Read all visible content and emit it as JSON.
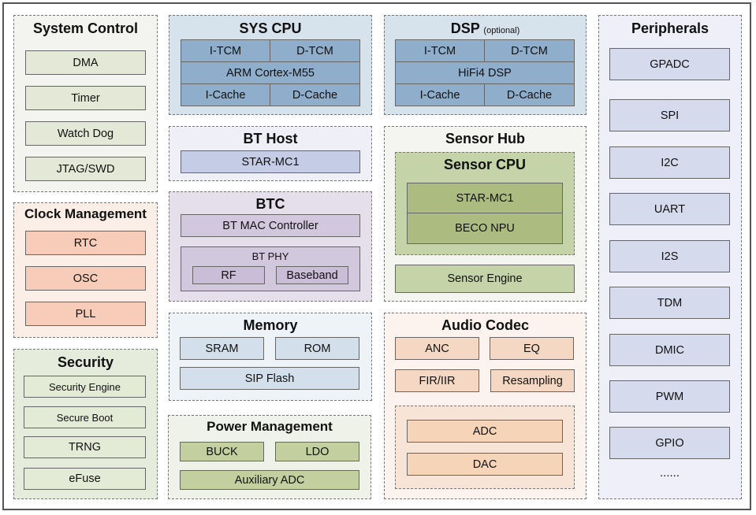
{
  "system_control": {
    "title": "System Control",
    "items": [
      "DMA",
      "Timer",
      "Watch Dog",
      "JTAG/SWD"
    ],
    "colors": {
      "bg": "#f3f4f0",
      "box": "#e3e9d6"
    }
  },
  "clock_management": {
    "title": "Clock Management",
    "items": [
      "RTC",
      "OSC",
      "PLL"
    ],
    "colors": {
      "bg": "#fbeee6",
      "box": "#f7cdb9"
    }
  },
  "security": {
    "title": "Security",
    "items": [
      "Security Engine",
      "Secure Boot",
      "TRNG",
      "eFuse"
    ],
    "colors": {
      "bg": "#e6ecdc",
      "box": "#e3ead6"
    }
  },
  "sys_cpu": {
    "title": "SYS CPU",
    "cells": {
      "itcm": "I-TCM",
      "dtcm": "D-TCM",
      "core": "ARM Cortex-M55",
      "icache": "I-Cache",
      "dcache": "D-Cache"
    },
    "colors": {
      "bg": "#d6e3ed",
      "cell": "#8eaecc"
    }
  },
  "bt_host": {
    "title": "BT Host",
    "items": [
      "STAR-MC1"
    ],
    "colors": {
      "bg": "#eeeff7",
      "box": "#c5cde6"
    }
  },
  "btc": {
    "title": "BTC",
    "mac": "BT MAC Controller",
    "phy": {
      "title": "BT PHY",
      "items": [
        "RF",
        "Baseband"
      ]
    },
    "colors": {
      "bg": "#e4dfea",
      "box": "#d2c8dd"
    }
  },
  "memory": {
    "title": "Memory",
    "items": [
      "SRAM",
      "ROM",
      "SIP Flash"
    ],
    "colors": {
      "bg": "#eef3f7",
      "box": "#d3e0ec"
    }
  },
  "power_management": {
    "title": "Power Management",
    "items": [
      "BUCK",
      "LDO",
      "Auxiliary ADC"
    ],
    "colors": {
      "bg": "#eef2e9",
      "box": "#c3cf9f"
    }
  },
  "dsp": {
    "title": "DSP",
    "subtitle": "(optional)",
    "cells": {
      "itcm": "I-TCM",
      "dtcm": "D-TCM",
      "core": "HiFi4 DSP",
      "icache": "I-Cache",
      "dcache": "D-Cache"
    }
  },
  "sensor_hub": {
    "title": "Sensor Hub",
    "cpu": {
      "title": "Sensor CPU",
      "items": [
        "STAR-MC1",
        "BECO NPU"
      ]
    },
    "engine": "Sensor Engine",
    "colors": {
      "bg": "#f4f5f1",
      "cpu": "#c5d3a8",
      "inner": "#acbb7f"
    }
  },
  "audio_codec": {
    "title": "Audio Codec",
    "items": [
      "ANC",
      "EQ",
      "FIR/IIR",
      "Resampling"
    ],
    "converters": [
      "ADC",
      "DAC"
    ],
    "colors": {
      "bg": "#fcf3ee",
      "box": "#f5d8c3",
      "inner": "#f7e4d7"
    }
  },
  "peripherals": {
    "title": "Peripherals",
    "items": [
      "GPADC",
      "SPI",
      "I2C",
      "UART",
      "I2S",
      "TDM",
      "DMIC",
      "PWM",
      "GPIO",
      "......"
    ],
    "colors": {
      "bg": "#eeeff8",
      "box": "#d5dbec"
    }
  }
}
